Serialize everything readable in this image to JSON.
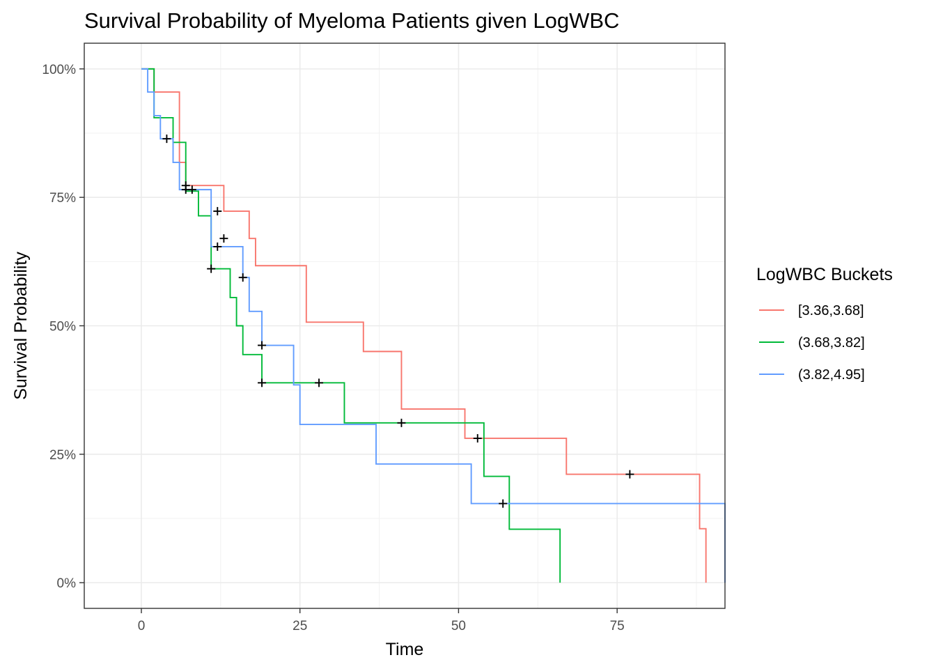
{
  "chart_data": {
    "type": "line",
    "step": true,
    "title": "Survival Probability of Myeloma Patients given LogWBC",
    "xlabel": "Time",
    "ylabel": "Survival Probability",
    "xlim": [
      -9,
      92
    ],
    "ylim": [
      -0.05,
      1.05
    ],
    "x_ticks": [
      0,
      25,
      50,
      75
    ],
    "y_ticks": [
      0,
      0.25,
      0.5,
      0.75,
      1.0
    ],
    "y_tick_labels": [
      "0%",
      "25%",
      "50%",
      "75%",
      "100%"
    ],
    "grid": true,
    "legend_title": "LogWBC Buckets",
    "legend_position": "right",
    "series": [
      {
        "name": "[3.36,3.68]",
        "color": "#F8766D",
        "steps": [
          [
            0,
            1.0
          ],
          [
            2,
            0.955
          ],
          [
            6,
            0.818
          ],
          [
            7,
            0.773
          ],
          [
            11,
            0.773
          ],
          [
            13,
            0.723
          ],
          [
            17,
            0.67
          ],
          [
            18,
            0.617
          ],
          [
            26,
            0.507
          ],
          [
            35,
            0.45
          ],
          [
            41,
            0.338
          ],
          [
            51,
            0.281
          ],
          [
            67,
            0.211
          ],
          [
            88,
            0.105
          ],
          [
            89,
            0.0
          ]
        ],
        "censor": [
          [
            7,
            0.773
          ],
          [
            12,
            0.723
          ],
          [
            13,
            0.67
          ],
          [
            53,
            0.281
          ],
          [
            77,
            0.211
          ]
        ]
      },
      {
        "name": "(3.68,3.82]",
        "color": "#00BA38",
        "steps": [
          [
            0,
            1.0
          ],
          [
            2,
            0.905
          ],
          [
            5,
            0.857
          ],
          [
            7,
            0.762
          ],
          [
            9,
            0.714
          ],
          [
            11,
            0.611
          ],
          [
            14,
            0.555
          ],
          [
            15,
            0.5
          ],
          [
            16,
            0.444
          ],
          [
            19,
            0.389
          ],
          [
            32,
            0.311
          ],
          [
            54,
            0.207
          ],
          [
            58,
            0.104
          ],
          [
            66,
            0.0
          ]
        ],
        "censor": [
          [
            11,
            0.611
          ],
          [
            19,
            0.389
          ],
          [
            28,
            0.389
          ],
          [
            41,
            0.311
          ]
        ]
      },
      {
        "name": "(3.82,4.95]",
        "color": "#619CFF",
        "steps": [
          [
            0,
            1.0
          ],
          [
            1,
            0.955
          ],
          [
            2,
            0.909
          ],
          [
            3,
            0.864
          ],
          [
            5,
            0.818
          ],
          [
            6,
            0.765
          ],
          [
            11,
            0.654
          ],
          [
            16,
            0.594
          ],
          [
            17,
            0.528
          ],
          [
            19,
            0.462
          ],
          [
            24,
            0.385
          ],
          [
            25,
            0.308
          ],
          [
            37,
            0.231
          ],
          [
            52,
            0.154
          ],
          [
            92,
            0.0
          ]
        ],
        "censor": [
          [
            4,
            0.864
          ],
          [
            7,
            0.765
          ],
          [
            8,
            0.765
          ],
          [
            12,
            0.654
          ],
          [
            16,
            0.594
          ],
          [
            19,
            0.462
          ],
          [
            57,
            0.154
          ]
        ]
      }
    ]
  }
}
